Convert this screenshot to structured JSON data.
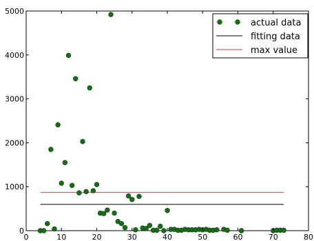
{
  "chart_data": {
    "type": "scatter",
    "xlim": [
      0,
      80
    ],
    "ylim": [
      0,
      5000
    ],
    "x_ticks": [
      0,
      10,
      20,
      30,
      40,
      50,
      60,
      70,
      80
    ],
    "y_ticks": [
      0,
      1000,
      2000,
      3000,
      4000,
      5000
    ],
    "grid": false,
    "legend_position": "top-right",
    "series": [
      {
        "name": "actual data",
        "kind": "points",
        "color": "#1a6b1a",
        "x": [
          4,
          5,
          6,
          7,
          8,
          9,
          10,
          11,
          12,
          13,
          14,
          15,
          16,
          17,
          18,
          19,
          20,
          21,
          22,
          23,
          24,
          25,
          26,
          27,
          28,
          29,
          30,
          31,
          32,
          33,
          34,
          35,
          36,
          37,
          38,
          39,
          40,
          41,
          42,
          43,
          44,
          45,
          46,
          47,
          48,
          49,
          50,
          51,
          52,
          53,
          54,
          56,
          57,
          61,
          70,
          71,
          72,
          73
        ],
        "y": [
          0,
          0,
          160,
          1850,
          40,
          2410,
          1080,
          1550,
          3990,
          1030,
          3460,
          860,
          2030,
          890,
          3250,
          910,
          1050,
          400,
          390,
          470,
          4920,
          400,
          210,
          160,
          70,
          790,
          710,
          20,
          780,
          60,
          50,
          120,
          10,
          10,
          100,
          0,
          460,
          30,
          30,
          10,
          10,
          30,
          20,
          20,
          20,
          30,
          20,
          30,
          10,
          10,
          20,
          30,
          10,
          0,
          0,
          10,
          10,
          10
        ]
      },
      {
        "name": "fitting data",
        "kind": "line",
        "color": "#333333",
        "x": [
          4,
          73
        ],
        "y": [
          600,
          600
        ]
      },
      {
        "name": "max value",
        "kind": "line",
        "color": "#e06060",
        "x": [
          4,
          73
        ],
        "y": [
          870,
          870
        ]
      }
    ]
  }
}
